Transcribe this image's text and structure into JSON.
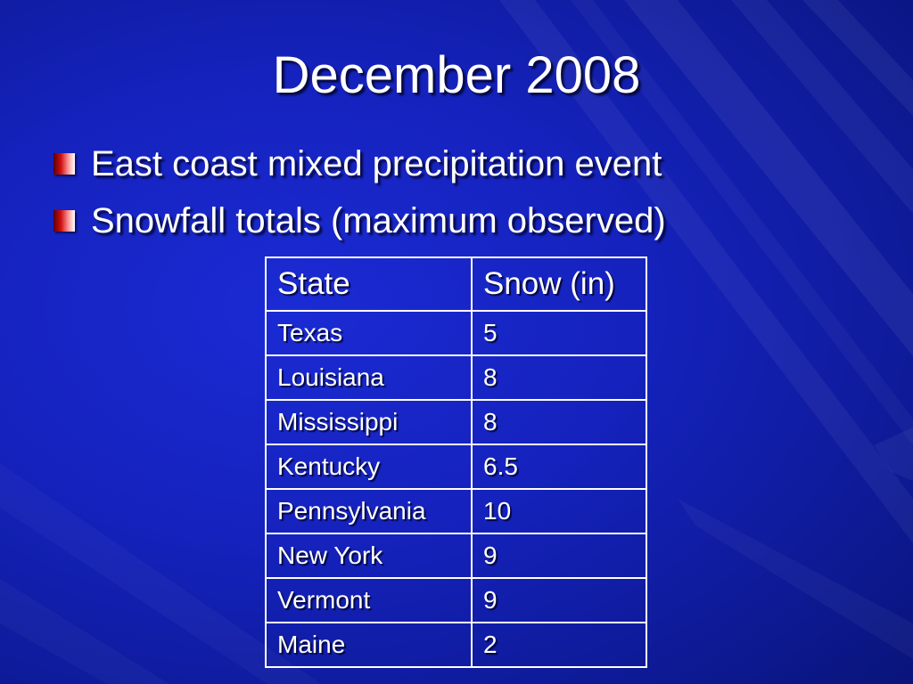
{
  "title": "December 2008",
  "bullets": [
    {
      "text": "East coast mixed precipitation event"
    },
    {
      "text": "Snowfall totals (maximum observed)"
    }
  ],
  "table": {
    "headers": [
      "State",
      "Snow (in)"
    ],
    "rows": [
      [
        "Texas",
        "5"
      ],
      [
        "Louisiana",
        "8"
      ],
      [
        "Mississippi",
        "8"
      ],
      [
        "Kentucky",
        "6.5"
      ],
      [
        "Pennsylvania",
        "10"
      ],
      [
        "New York",
        "9"
      ],
      [
        "Vermont",
        "9"
      ],
      [
        "Maine",
        "2"
      ]
    ]
  },
  "colors": {
    "background": "#1522bd",
    "text": "#ffffff",
    "bullet_red": "#d01010"
  },
  "icons": {
    "bullet": "red-gradient-square-bullet-icon"
  }
}
